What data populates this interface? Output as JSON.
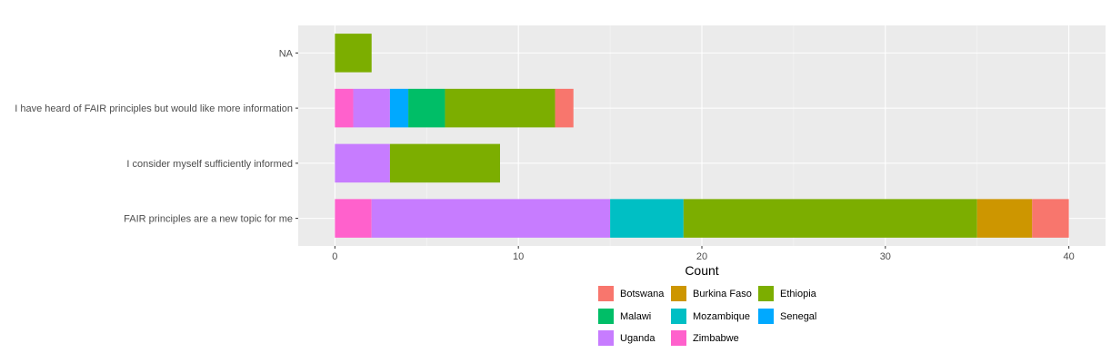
{
  "chart_data": {
    "type": "bar",
    "orientation": "horizontal",
    "stacked": true,
    "title": "",
    "xlabel": "Count",
    "ylabel": "",
    "xlim": [
      -2,
      42
    ],
    "x_ticks": [
      0,
      10,
      20,
      30,
      40
    ],
    "grid": true,
    "legend_position": "bottom",
    "categories": [
      "FAIR principles are a new topic for me",
      "I consider myself sufficiently informed",
      "I have heard of FAIR principles but would like more information",
      "NA"
    ],
    "series": [
      {
        "name": "Zimbabwe",
        "color": "#FF61CC",
        "values": [
          2,
          0,
          1,
          0
        ]
      },
      {
        "name": "Uganda",
        "color": "#C77CFF",
        "values": [
          13,
          3,
          2,
          0
        ]
      },
      {
        "name": "Senegal",
        "color": "#00A9FF",
        "values": [
          0,
          0,
          1,
          0
        ]
      },
      {
        "name": "Mozambique",
        "color": "#00BFC4",
        "values": [
          4,
          0,
          0,
          0
        ]
      },
      {
        "name": "Malawi",
        "color": "#00BE67",
        "values": [
          0,
          0,
          2,
          0
        ]
      },
      {
        "name": "Ethiopia",
        "color": "#7CAE00",
        "values": [
          16,
          6,
          6,
          2
        ]
      },
      {
        "name": "Burkina Faso",
        "color": "#CD9600",
        "values": [
          3,
          0,
          0,
          0
        ]
      },
      {
        "name": "Botswana",
        "color": "#F8766D",
        "values": [
          2,
          0,
          1,
          0
        ]
      }
    ],
    "legend_order": [
      [
        "Botswana",
        "Burkina Faso",
        "Ethiopia"
      ],
      [
        "Malawi",
        "Mozambique",
        "Senegal"
      ],
      [
        "Uganda",
        "Zimbabwe"
      ]
    ]
  }
}
